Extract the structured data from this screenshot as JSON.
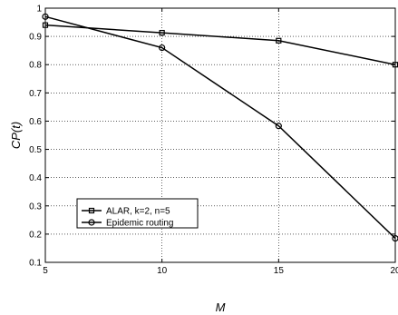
{
  "chart_data": {
    "type": "line",
    "title": "",
    "xlabel": "M",
    "ylabel": "CP(t)",
    "xlim": [
      5,
      20
    ],
    "ylim": [
      0.1,
      1.0
    ],
    "xticks": [
      5,
      10,
      15,
      20
    ],
    "yticks": [
      0.1,
      0.2,
      0.3,
      0.4,
      0.5,
      0.6,
      0.7,
      0.8,
      0.9,
      1
    ],
    "x_tick_labels": [
      "5",
      "10",
      "15",
      "20"
    ],
    "y_tick_labels": [
      "0.1",
      "0.2",
      "0.3",
      "0.4",
      "0.5",
      "0.6",
      "0.7",
      "0.8",
      "0.9",
      "1"
    ],
    "grid": true,
    "legend_position": "center-left",
    "series": [
      {
        "name": "ALAR, k=2, n=5",
        "marker": "square",
        "color": "#000000",
        "x": [
          5,
          10,
          15,
          20
        ],
        "y": [
          0.94,
          0.913,
          0.885,
          0.8
        ]
      },
      {
        "name": "Epidemic routing",
        "marker": "circle",
        "color": "#000000",
        "x": [
          5,
          10,
          15,
          20
        ],
        "y": [
          0.97,
          0.86,
          0.583,
          0.185
        ]
      }
    ]
  }
}
